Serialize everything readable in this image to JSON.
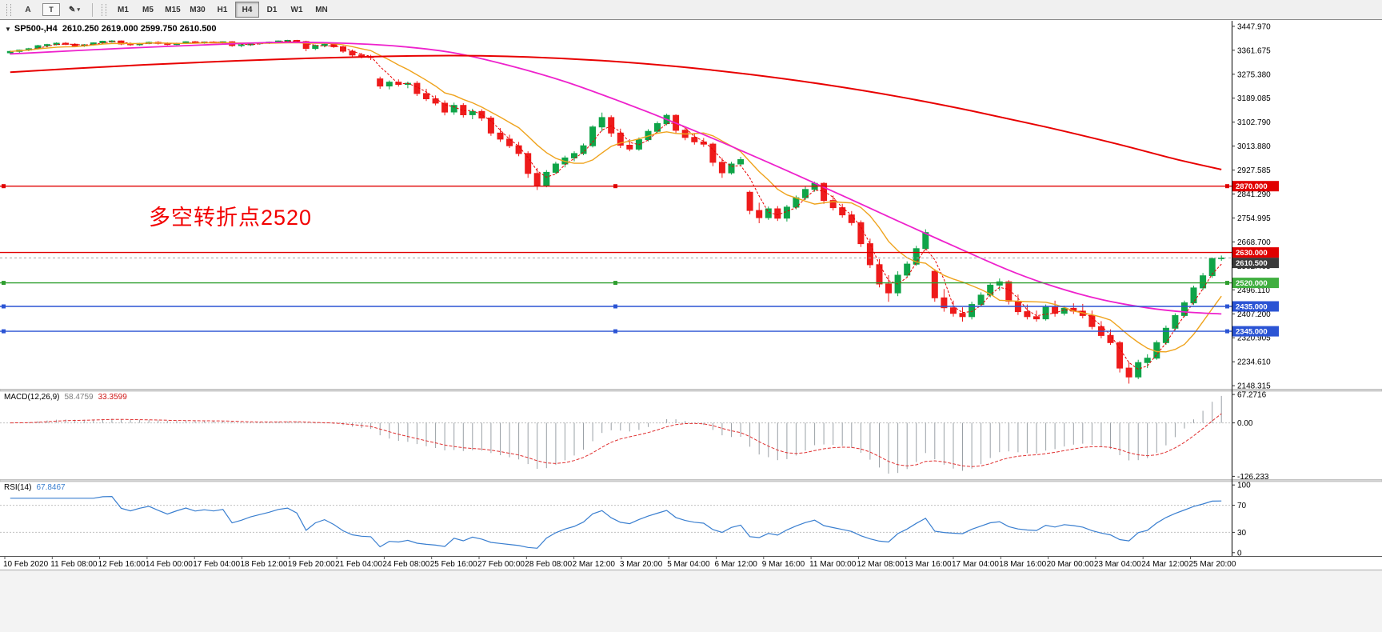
{
  "toolbar": {
    "tools": [
      {
        "id": "text-tool",
        "glyph": "A"
      },
      {
        "id": "label-tool",
        "glyph": "T",
        "boxed": true
      },
      {
        "id": "draw-tool",
        "glyph": "✎",
        "caret": true
      }
    ],
    "caret_icon": "▾",
    "timeframes": [
      "M1",
      "M5",
      "M15",
      "M30",
      "H1",
      "H4",
      "D1",
      "W1",
      "MN"
    ],
    "active_timeframe": "H4"
  },
  "chart_header": {
    "collapse_icon": "▼",
    "symbol": "SP500-,H4",
    "ohlc": "2610.250 2619.000 2599.750 2610.500"
  },
  "annotation": {
    "text": "多空转折点2520",
    "color": "#f20000"
  },
  "panels": {
    "macd": {
      "title": "MACD(12,26,9)",
      "value_main": "58.4759",
      "value_signal": "33.3599",
      "axis_labels": [
        "67.2716",
        "0.00",
        "-126.233"
      ],
      "axis_values": [
        67.2716,
        0,
        -126.233
      ]
    },
    "rsi": {
      "title": "RSI(14)",
      "value": "67.8467",
      "axis_labels": [
        "100",
        "70",
        "30",
        "0"
      ],
      "axis_values": [
        100,
        70,
        30,
        0
      ],
      "levels": [
        70,
        30
      ]
    }
  },
  "chart_data": {
    "type": "candlestick",
    "symbol": "SP500-,H4",
    "timeframe": "H4",
    "title": "SP500 H4 candlestick chart with MACD and RSI",
    "y_axis": {
      "labels": [
        "3447.970",
        "3361.675",
        "3275.380",
        "3189.085",
        "3102.790",
        "3013.880",
        "2927.585",
        "2841.290",
        "2754.995",
        "2668.700",
        "2582.405",
        "2496.110",
        "2407.200",
        "2320.905",
        "2234.610",
        "2148.315"
      ],
      "price_top": 3465,
      "price_bottom": 2140
    },
    "x_labels": [
      "10 Feb 2020",
      "11 Feb 08:00",
      "12 Feb 16:00",
      "14 Feb 00:00",
      "17 Feb 04:00",
      "18 Feb 12:00",
      "19 Feb 20:00",
      "21 Feb 04:00",
      "24 Feb 08:00",
      "25 Feb 16:00",
      "27 Feb 00:00",
      "28 Feb 08:00",
      "2 Mar 12:00",
      "3 Mar 20:00",
      "5 Mar 04:00",
      "6 Mar 12:00",
      "9 Mar 16:00",
      "11 Mar 00:00",
      "12 Mar 08:00",
      "13 Mar 16:00",
      "17 Mar 04:00",
      "18 Mar 16:00",
      "20 Mar 00:00",
      "23 Mar 04:00",
      "24 Mar 12:00",
      "25 Mar 20:00"
    ],
    "candles": [
      [
        3352,
        3360,
        3346,
        3357
      ],
      [
        3357,
        3364,
        3352,
        3362
      ],
      [
        3362,
        3370,
        3358,
        3367
      ],
      [
        3367,
        3381,
        3364,
        3378
      ],
      [
        3378,
        3385,
        3372,
        3382
      ],
      [
        3382,
        3390,
        3379,
        3387
      ],
      [
        3387,
        3391,
        3380,
        3383
      ],
      [
        3383,
        3387,
        3374,
        3377
      ],
      [
        3377,
        3384,
        3373,
        3381
      ],
      [
        3381,
        3390,
        3378,
        3388
      ],
      [
        3388,
        3396,
        3386,
        3394
      ],
      [
        3394,
        3398,
        3389,
        3395
      ],
      [
        3395,
        3397,
        3380,
        3384
      ],
      [
        3384,
        3389,
        3377,
        3381
      ],
      [
        3381,
        3388,
        3378,
        3386
      ],
      [
        3386,
        3393,
        3383,
        3390
      ],
      [
        3390,
        3394,
        3382,
        3386
      ],
      [
        3386,
        3390,
        3379,
        3382
      ],
      [
        3382,
        3389,
        3380,
        3387
      ],
      [
        3387,
        3394,
        3385,
        3392
      ],
      [
        3392,
        3395,
        3386,
        3389
      ],
      [
        3389,
        3393,
        3385,
        3391
      ],
      [
        3391,
        3394,
        3387,
        3390
      ],
      [
        3390,
        3393,
        3386,
        3392
      ],
      [
        3392,
        3394,
        3374,
        3378
      ],
      [
        3378,
        3384,
        3372,
        3381
      ],
      [
        3381,
        3387,
        3377,
        3385
      ],
      [
        3385,
        3390,
        3381,
        3388
      ],
      [
        3388,
        3393,
        3384,
        3391
      ],
      [
        3391,
        3397,
        3388,
        3395
      ],
      [
        3395,
        3399,
        3393,
        3397
      ],
      [
        3397,
        3399,
        3390,
        3393
      ],
      [
        3393,
        3396,
        3358,
        3368
      ],
      [
        3368,
        3382,
        3362,
        3378
      ],
      [
        3378,
        3386,
        3372,
        3383
      ],
      [
        3383,
        3388,
        3370,
        3374
      ],
      [
        3374,
        3378,
        3352,
        3358
      ],
      [
        3358,
        3364,
        3338,
        3344
      ],
      [
        3344,
        3352,
        3332,
        3338
      ],
      [
        3338,
        3345,
        3326,
        3336
      ],
      [
        3258,
        3266,
        3222,
        3232
      ],
      [
        3232,
        3252,
        3220,
        3246
      ],
      [
        3246,
        3256,
        3230,
        3238
      ],
      [
        3238,
        3248,
        3224,
        3242
      ],
      [
        3242,
        3250,
        3196,
        3205
      ],
      [
        3205,
        3222,
        3178,
        3186
      ],
      [
        3186,
        3198,
        3162,
        3170
      ],
      [
        3170,
        3180,
        3126,
        3138
      ],
      [
        3138,
        3172,
        3128,
        3162
      ],
      [
        3162,
        3170,
        3118,
        3128
      ],
      [
        3128,
        3150,
        3112,
        3140
      ],
      [
        3140,
        3148,
        3106,
        3116
      ],
      [
        3116,
        3124,
        3052,
        3062
      ],
      [
        3062,
        3080,
        3030,
        3040
      ],
      [
        3040,
        3056,
        3008,
        3016
      ],
      [
        3016,
        3030,
        2978,
        2988
      ],
      [
        2988,
        2996,
        2900,
        2916
      ],
      [
        2916,
        2936,
        2856,
        2872
      ],
      [
        2872,
        2928,
        2866,
        2920
      ],
      [
        2920,
        2958,
        2914,
        2950
      ],
      [
        2950,
        2980,
        2938,
        2972
      ],
      [
        2972,
        2996,
        2960,
        2988
      ],
      [
        2988,
        3024,
        2982,
        3016
      ],
      [
        3016,
        3090,
        3010,
        3084
      ],
      [
        3084,
        3136,
        3068,
        3118
      ],
      [
        3118,
        3126,
        3048,
        3062
      ],
      [
        3062,
        3078,
        3008,
        3018
      ],
      [
        3018,
        3040,
        2996,
        3004
      ],
      [
        3004,
        3046,
        2998,
        3038
      ],
      [
        3038,
        3076,
        3032,
        3068
      ],
      [
        3068,
        3104,
        3062,
        3096
      ],
      [
        3096,
        3132,
        3090,
        3126
      ],
      [
        3126,
        3130,
        3060,
        3072
      ],
      [
        3072,
        3084,
        3036,
        3046
      ],
      [
        3046,
        3062,
        3020,
        3030
      ],
      [
        3030,
        3044,
        3012,
        3022
      ],
      [
        3022,
        3028,
        2942,
        2956
      ],
      [
        2956,
        2972,
        2900,
        2918
      ],
      [
        2918,
        2958,
        2912,
        2950
      ],
      [
        2950,
        2976,
        2944,
        2966
      ],
      [
        2848,
        2854,
        2768,
        2782
      ],
      [
        2782,
        2810,
        2736,
        2756
      ],
      [
        2756,
        2796,
        2748,
        2788
      ],
      [
        2788,
        2798,
        2744,
        2754
      ],
      [
        2754,
        2802,
        2742,
        2794
      ],
      [
        2794,
        2836,
        2786,
        2828
      ],
      [
        2828,
        2868,
        2820,
        2858
      ],
      [
        2858,
        2886,
        2850,
        2880
      ],
      [
        2880,
        2884,
        2806,
        2818
      ],
      [
        2818,
        2836,
        2782,
        2792
      ],
      [
        2792,
        2806,
        2756,
        2766
      ],
      [
        2766,
        2780,
        2728,
        2738
      ],
      [
        2738,
        2746,
        2650,
        2662
      ],
      [
        2662,
        2680,
        2574,
        2586
      ],
      [
        2586,
        2606,
        2504,
        2516
      ],
      [
        2516,
        2548,
        2452,
        2484
      ],
      [
        2484,
        2562,
        2472,
        2548
      ],
      [
        2548,
        2598,
        2540,
        2588
      ],
      [
        2588,
        2654,
        2582,
        2644
      ],
      [
        2644,
        2714,
        2638,
        2702
      ],
      [
        2562,
        2570,
        2452,
        2466
      ],
      [
        2466,
        2498,
        2416,
        2430
      ],
      [
        2430,
        2456,
        2398,
        2410
      ],
      [
        2410,
        2432,
        2380,
        2398
      ],
      [
        2398,
        2452,
        2388,
        2442
      ],
      [
        2442,
        2486,
        2434,
        2476
      ],
      [
        2476,
        2522,
        2468,
        2512
      ],
      [
        2512,
        2536,
        2492,
        2524
      ],
      [
        2524,
        2530,
        2442,
        2454
      ],
      [
        2454,
        2478,
        2404,
        2416
      ],
      [
        2416,
        2442,
        2388,
        2398
      ],
      [
        2398,
        2420,
        2380,
        2390
      ],
      [
        2390,
        2442,
        2384,
        2432
      ],
      [
        2432,
        2456,
        2398,
        2410
      ],
      [
        2410,
        2438,
        2402,
        2428
      ],
      [
        2428,
        2446,
        2408,
        2418
      ],
      [
        2418,
        2444,
        2392,
        2402
      ],
      [
        2402,
        2420,
        2352,
        2362
      ],
      [
        2362,
        2382,
        2320,
        2330
      ],
      [
        2330,
        2352,
        2296,
        2304
      ],
      [
        2304,
        2310,
        2196,
        2212
      ],
      [
        2212,
        2234,
        2156,
        2180
      ],
      [
        2180,
        2242,
        2172,
        2232
      ],
      [
        2232,
        2262,
        2212,
        2248
      ],
      [
        2248,
        2312,
        2242,
        2304
      ],
      [
        2304,
        2366,
        2296,
        2356
      ],
      [
        2356,
        2410,
        2348,
        2402
      ],
      [
        2402,
        2456,
        2396,
        2448
      ],
      [
        2448,
        2510,
        2440,
        2502
      ],
      [
        2502,
        2556,
        2494,
        2546
      ],
      [
        2546,
        2612,
        2538,
        2608
      ],
      [
        2610.25,
        2619,
        2599.75,
        2610.5
      ]
    ],
    "ma_magenta_points": [
      [
        0,
        3348
      ],
      [
        12,
        3368
      ],
      [
        24,
        3385
      ],
      [
        30,
        3390
      ],
      [
        36,
        3387
      ],
      [
        42,
        3376
      ],
      [
        48,
        3352
      ],
      [
        54,
        3306
      ],
      [
        60,
        3248
      ],
      [
        66,
        3176
      ],
      [
        72,
        3098
      ],
      [
        78,
        3014
      ],
      [
        84,
        2926
      ],
      [
        90,
        2836
      ],
      [
        96,
        2744
      ],
      [
        102,
        2654
      ],
      [
        108,
        2566
      ],
      [
        113,
        2506
      ],
      [
        118,
        2460
      ],
      [
        123,
        2430
      ],
      [
        127,
        2415
      ],
      [
        131,
        2408
      ]
    ],
    "ma_slow_points": [
      [
        0,
        3282
      ],
      [
        10,
        3301
      ],
      [
        20,
        3317
      ],
      [
        30,
        3330
      ],
      [
        40,
        3339
      ],
      [
        48,
        3342
      ],
      [
        56,
        3337
      ],
      [
        64,
        3324
      ],
      [
        72,
        3303
      ],
      [
        80,
        3274
      ],
      [
        88,
        3238
      ],
      [
        96,
        3194
      ],
      [
        104,
        3142
      ],
      [
        112,
        3084
      ],
      [
        120,
        3020
      ],
      [
        126,
        2968
      ],
      [
        131,
        2930
      ]
    ],
    "hlines": [
      {
        "value": 2870,
        "color": "#e00000",
        "selected": true
      },
      {
        "value": 2630,
        "color": "#e00000",
        "selected": false
      },
      {
        "value": 2520,
        "color": "#2e9e2e",
        "selected": true
      },
      {
        "value": 2435,
        "color": "#2b54d4",
        "selected": true
      },
      {
        "value": 2345,
        "color": "#2b54d4",
        "selected": true
      }
    ],
    "current_price": 2610.5,
    "price_tags": [
      {
        "value": 2870,
        "label": "2870.000",
        "color": "#e00000"
      },
      {
        "value": 2630,
        "label": "2630.000",
        "color": "#e00000"
      },
      {
        "value": 2610.5,
        "label": "2610.500",
        "color": "#3a3a3a"
      },
      {
        "value": 2520,
        "label": "2520.000",
        "color": "#3fae3f"
      },
      {
        "value": 2435,
        "label": "2435.000",
        "color": "#2b54d4"
      },
      {
        "value": 2345,
        "label": "2345.000",
        "color": "#2b54d4"
      }
    ],
    "colors": {
      "up": "#0fa448",
      "down": "#ee1b1b",
      "ma_fast_dotted": "#e80000",
      "ma_orange": "#efa31d",
      "ma_magenta": "#ee22cc",
      "ma_slow": "#e80000",
      "hist": "#9aa0a6",
      "signal": "#e03131",
      "rsi": "#3a7fd0",
      "levels": "#c0c0c0",
      "current": "#a8a8a8"
    }
  }
}
